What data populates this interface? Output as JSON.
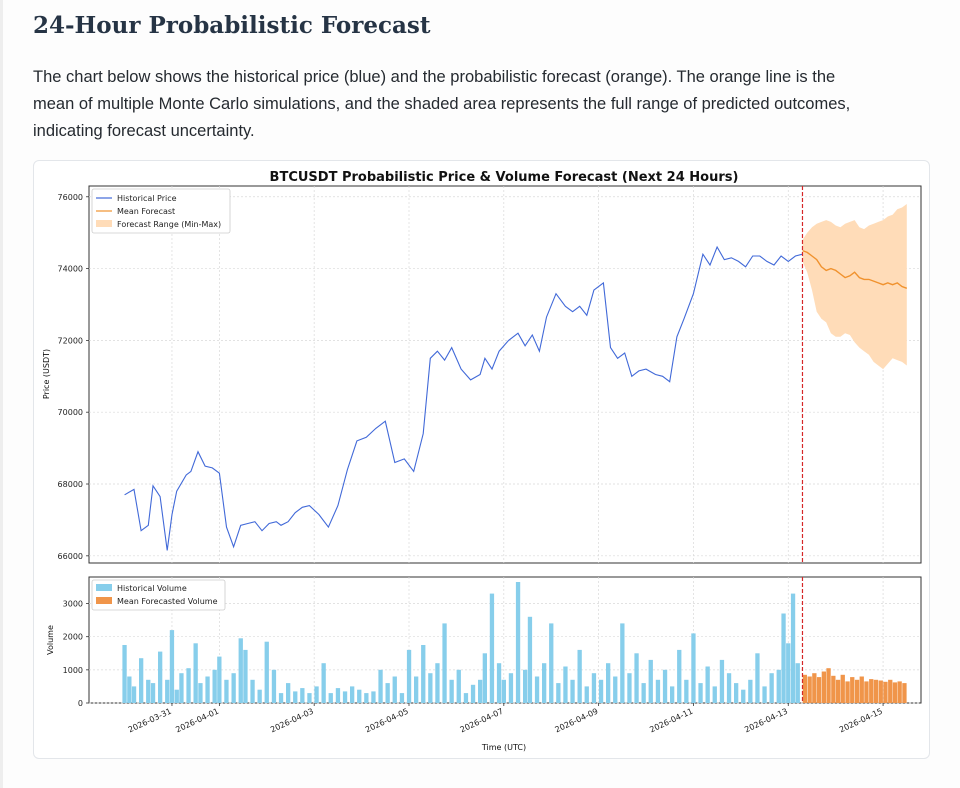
{
  "page": {
    "title": "24-Hour Probabilistic Forecast",
    "description": "The chart below shows the historical price (blue) and the probabilistic forecast (orange). The orange line is the mean of multiple Monte Carlo simulations, and the shaded area represents the full range of predicted outcomes, indicating forecast uncertainty."
  },
  "colors": {
    "historical_price": "#4169d8",
    "mean_forecast": "#f0922e",
    "forecast_range": "#ffd8b0",
    "historical_volume": "#87ceeb",
    "forecast_volume": "#f0954a",
    "divider": "#d62728"
  },
  "chart_data": {
    "type": "line",
    "title": "BTCUSDT Probabilistic Price & Volume Forecast (Next 24 Hours)",
    "xlabel": "Time (UTC)",
    "x_tick_labels": [
      "2026-03-31",
      "2026-04-01",
      "2026-04-03",
      "2026-04-05",
      "2026-04-07",
      "2026-04-09",
      "2026-04-11",
      "2026-04-13",
      "2026-04-15"
    ],
    "x_tick_days": [
      1,
      2,
      4,
      6,
      8,
      10,
      12,
      14,
      16
    ],
    "x_range_days": [
      -0.75,
      16.8
    ],
    "forecast_start_day": 14.3,
    "price_panel": {
      "ylabel": "Price (USDT)",
      "ylim": [
        65800,
        76300
      ],
      "yticks": [
        66000,
        68000,
        70000,
        72000,
        74000,
        76000
      ],
      "legend": [
        "Historical Price",
        "Mean Forecast",
        "Forecast Range (Min-Max)"
      ],
      "historical_series": {
        "name": "Historical Price",
        "x": [
          0,
          0.2,
          0.35,
          0.5,
          0.6,
          0.75,
          0.9,
          1.0,
          1.1,
          1.3,
          1.4,
          1.55,
          1.7,
          1.85,
          2.0,
          2.15,
          2.3,
          2.45,
          2.6,
          2.75,
          2.9,
          3.05,
          3.2,
          3.3,
          3.45,
          3.6,
          3.75,
          3.9,
          4.1,
          4.3,
          4.5,
          4.7,
          4.9,
          5.1,
          5.3,
          5.5,
          5.7,
          5.9,
          6.1,
          6.3,
          6.45,
          6.6,
          6.75,
          6.9,
          7.1,
          7.3,
          7.5,
          7.6,
          7.75,
          7.9,
          8.1,
          8.3,
          8.45,
          8.6,
          8.75,
          8.9,
          9.1,
          9.3,
          9.45,
          9.6,
          9.75,
          9.9,
          10.1,
          10.25,
          10.4,
          10.55,
          10.7,
          10.85,
          11.0,
          11.2,
          11.35,
          11.5,
          11.65,
          11.8,
          12.0,
          12.2,
          12.35,
          12.5,
          12.65,
          12.8,
          12.95,
          13.1,
          13.25,
          13.4,
          13.55,
          13.7,
          13.85,
          14.0,
          14.15,
          14.3
        ],
        "values": [
          67700,
          67850,
          66700,
          66850,
          67950,
          67650,
          66150,
          67150,
          67800,
          68250,
          68350,
          68900,
          68500,
          68450,
          68300,
          66800,
          66250,
          66850,
          66900,
          66950,
          66700,
          66900,
          66950,
          66850,
          66950,
          67200,
          67350,
          67400,
          67150,
          66800,
          67400,
          68400,
          69200,
          69300,
          69550,
          69750,
          68600,
          68700,
          68350,
          69400,
          71500,
          71700,
          71450,
          71800,
          71200,
          70900,
          71050,
          71500,
          71200,
          71700,
          72000,
          72200,
          71850,
          72150,
          71700,
          72650,
          73300,
          72950,
          72800,
          72950,
          72700,
          73400,
          73600,
          71800,
          71500,
          71650,
          71000,
          71150,
          71200,
          71050,
          71000,
          70850,
          72100,
          72600,
          73300,
          74400,
          74100,
          74600,
          74250,
          74300,
          74200,
          74050,
          74350,
          74350,
          74200,
          74100,
          74350,
          74200,
          74350,
          74400
        ]
      },
      "forecast_series": {
        "name": "Mean Forecast",
        "x": [
          14.3,
          14.4,
          14.5,
          14.6,
          14.7,
          14.8,
          14.9,
          15.0,
          15.1,
          15.2,
          15.3,
          15.4,
          15.5,
          15.6,
          15.7,
          15.8,
          15.9,
          16.0,
          16.1,
          16.2,
          16.3,
          16.4,
          16.5
        ],
        "values": [
          74500,
          74450,
          74350,
          74250,
          74050,
          73950,
          74000,
          73950,
          73850,
          73750,
          73800,
          73900,
          73750,
          73700,
          73700,
          73650,
          73600,
          73550,
          73600,
          73550,
          73600,
          73500,
          73450
        ],
        "range_min": [
          74200,
          73900,
          73400,
          72800,
          72600,
          72500,
          72200,
          72100,
          72100,
          72200,
          72150,
          71950,
          71800,
          71700,
          71600,
          71400,
          71300,
          71200,
          71350,
          71500,
          71450,
          71400,
          71300
        ],
        "range_max": [
          74800,
          75000,
          75150,
          75250,
          75300,
          75350,
          75300,
          75200,
          75150,
          75250,
          75300,
          75350,
          75150,
          75100,
          75200,
          75250,
          75300,
          75350,
          75450,
          75500,
          75650,
          75700,
          75800
        ]
      }
    },
    "volume_panel": {
      "ylabel": "Volume",
      "ylim": [
        0,
        3800
      ],
      "yticks": [
        0,
        1000,
        2000,
        3000
      ],
      "legend": [
        "Historical Volume",
        "Mean Forecasted Volume"
      ],
      "historical_bars": {
        "name": "Historical Volume",
        "x": [
          0,
          0.1,
          0.2,
          0.35,
          0.5,
          0.6,
          0.75,
          0.9,
          1.0,
          1.1,
          1.2,
          1.35,
          1.5,
          1.6,
          1.75,
          1.9,
          2.0,
          2.15,
          2.3,
          2.45,
          2.55,
          2.7,
          2.85,
          3.0,
          3.15,
          3.3,
          3.45,
          3.6,
          3.75,
          3.9,
          4.05,
          4.2,
          4.35,
          4.5,
          4.65,
          4.8,
          4.95,
          5.1,
          5.25,
          5.4,
          5.55,
          5.7,
          5.85,
          6.0,
          6.15,
          6.3,
          6.45,
          6.6,
          6.75,
          6.9,
          7.05,
          7.2,
          7.35,
          7.5,
          7.6,
          7.75,
          7.9,
          8.0,
          8.15,
          8.3,
          8.45,
          8.55,
          8.7,
          8.85,
          9.0,
          9.15,
          9.3,
          9.45,
          9.6,
          9.75,
          9.9,
          10.05,
          10.2,
          10.35,
          10.5,
          10.65,
          10.8,
          10.95,
          11.1,
          11.25,
          11.4,
          11.55,
          11.7,
          11.85,
          12.0,
          12.15,
          12.3,
          12.45,
          12.6,
          12.75,
          12.9,
          13.05,
          13.2,
          13.35,
          13.5,
          13.65,
          13.8,
          13.9,
          14.0,
          14.1,
          14.2
        ],
        "values": [
          1750,
          800,
          500,
          1350,
          700,
          600,
          1550,
          700,
          2200,
          400,
          900,
          1050,
          1800,
          600,
          800,
          1000,
          1400,
          700,
          900,
          1950,
          1600,
          700,
          400,
          1850,
          1000,
          300,
          600,
          350,
          450,
          300,
          500,
          1200,
          300,
          450,
          350,
          500,
          400,
          300,
          350,
          1000,
          600,
          800,
          300,
          1600,
          800,
          1750,
          900,
          1200,
          2400,
          700,
          1000,
          300,
          550,
          700,
          1500,
          3300,
          1200,
          700,
          900,
          3650,
          1000,
          2600,
          800,
          1200,
          2400,
          600,
          1100,
          700,
          1600,
          500,
          900,
          700,
          1200,
          800,
          2400,
          900,
          1500,
          600,
          1300,
          700,
          1000,
          500,
          1600,
          700,
          2100,
          600,
          1100,
          500,
          1300,
          900,
          600,
          400,
          700,
          1500,
          500,
          900,
          1000,
          2700,
          1800,
          3300,
          1200
        ]
      },
      "forecast_bars": {
        "name": "Mean Forecasted Volume",
        "x": [
          14.35,
          14.45,
          14.55,
          14.65,
          14.75,
          14.85,
          14.95,
          15.05,
          15.15,
          15.25,
          15.35,
          15.45,
          15.55,
          15.65,
          15.75,
          15.85,
          15.95,
          16.05,
          16.15,
          16.25,
          16.35,
          16.45
        ],
        "values": [
          850,
          800,
          900,
          780,
          950,
          1050,
          820,
          700,
          850,
          650,
          780,
          700,
          800,
          650,
          720,
          700,
          680,
          640,
          700,
          620,
          650,
          600
        ]
      }
    }
  }
}
